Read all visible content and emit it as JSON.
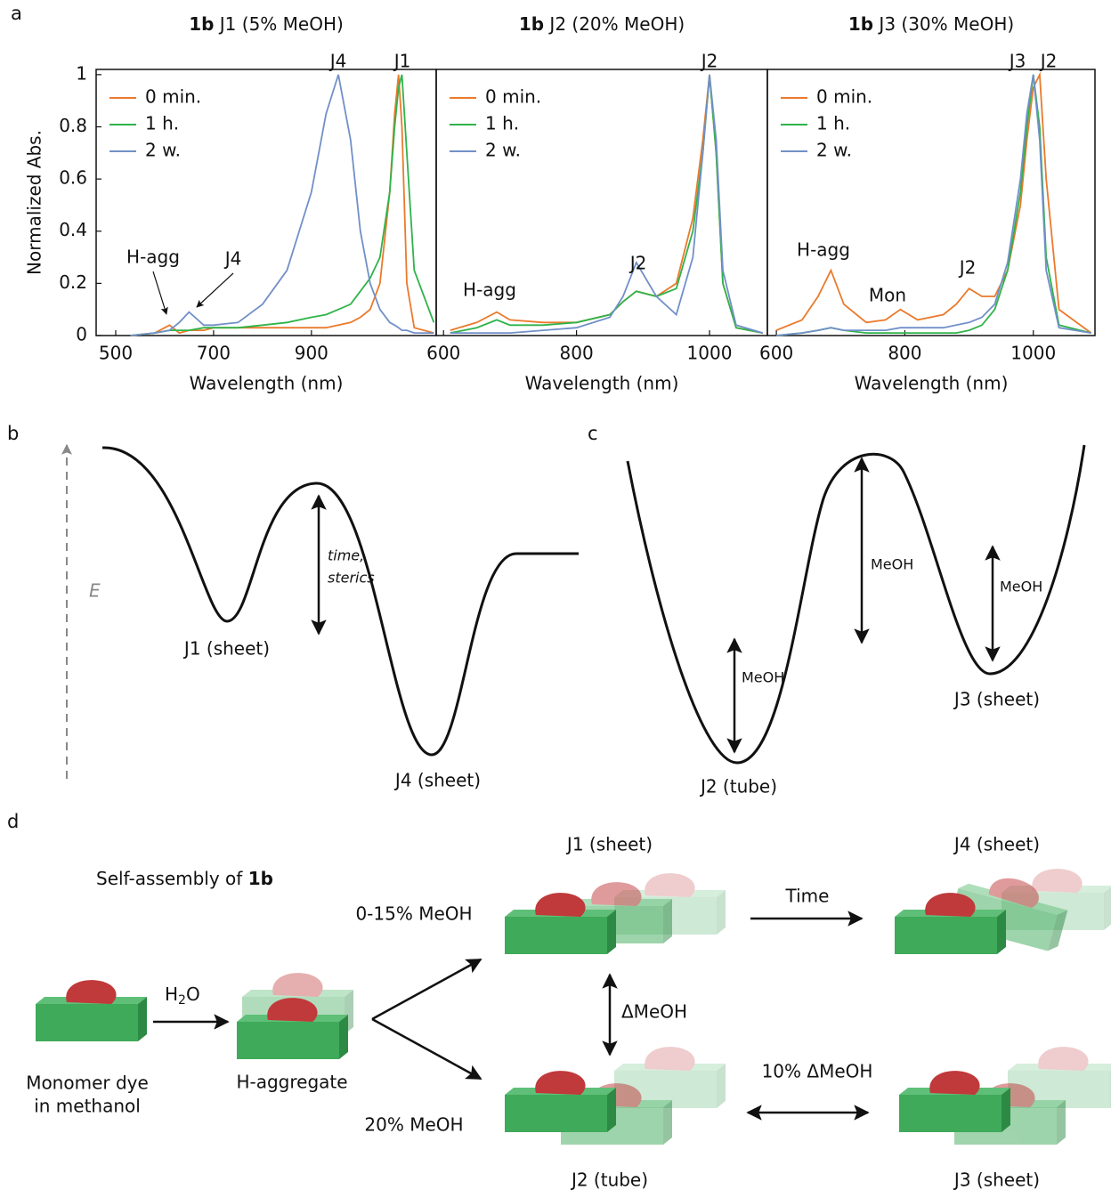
{
  "panel_labels": [
    "a",
    "b",
    "c",
    "d"
  ],
  "chart_data": [
    {
      "type": "line",
      "title_bold": "1b",
      "title": "J1 (5% MeOH)",
      "x_label": "Wavelength (nm)",
      "y_label": "Normalized Abs.",
      "xlim": [
        460,
        1155
      ],
      "xticks": [
        500,
        700,
        900
      ],
      "ylim": [
        0,
        1.02
      ],
      "yticks": [
        0,
        0.2,
        0.4,
        0.6,
        0.8,
        1
      ],
      "annotations": [
        "J4",
        "J1",
        "H-agg",
        "J4"
      ],
      "x": [
        530,
        580,
        610,
        630,
        650,
        680,
        700,
        750,
        800,
        850,
        900,
        930,
        955,
        980,
        1000,
        1020,
        1040,
        1060,
        1070,
        1078,
        1085,
        1095,
        1110,
        1150
      ],
      "series": [
        {
          "name": "0 min.",
          "color": "#ea7a2c",
          "values": [
            0,
            0.01,
            0.04,
            0.01,
            0.02,
            0.02,
            0.03,
            0.03,
            0.03,
            0.03,
            0.03,
            0.03,
            0.04,
            0.05,
            0.07,
            0.1,
            0.2,
            0.55,
            0.85,
            1.0,
            0.8,
            0.2,
            0.03,
            0.01
          ]
        },
        {
          "name": "1 h.",
          "color": "#2fb34a",
          "values": [
            0,
            0.01,
            0.02,
            0.02,
            0.02,
            0.03,
            0.03,
            0.03,
            0.04,
            0.05,
            0.07,
            0.08,
            0.1,
            0.12,
            0.17,
            0.22,
            0.3,
            0.55,
            0.8,
            0.95,
            1.0,
            0.7,
            0.25,
            0.05
          ]
        },
        {
          "name": "2 w.",
          "color": "#7190c8",
          "values": [
            0,
            0.01,
            0.02,
            0.05,
            0.09,
            0.04,
            0.04,
            0.05,
            0.12,
            0.25,
            0.55,
            0.85,
            1.0,
            0.75,
            0.4,
            0.2,
            0.1,
            0.05,
            0.04,
            0.03,
            0.02,
            0.02,
            0.01,
            0.01
          ]
        }
      ]
    },
    {
      "type": "line",
      "title_bold": "1b",
      "title": "J2 (20% MeOH)",
      "x_label": "Wavelength (nm)",
      "xlim": [
        589,
        1087
      ],
      "xticks": [
        600,
        800,
        1000
      ],
      "ylim": [
        0,
        1.02
      ],
      "annotations": [
        "J2",
        "J2",
        "H-agg"
      ],
      "x": [
        610,
        650,
        680,
        700,
        750,
        800,
        850,
        870,
        890,
        920,
        950,
        975,
        990,
        1000,
        1010,
        1020,
        1040,
        1080
      ],
      "series": [
        {
          "name": "0 min.",
          "color": "#ea7a2c",
          "values": [
            0.02,
            0.05,
            0.09,
            0.06,
            0.05,
            0.05,
            0.08,
            0.13,
            0.17,
            0.15,
            0.2,
            0.45,
            0.75,
            1.0,
            0.7,
            0.2,
            0.03,
            0.01
          ]
        },
        {
          "name": "1 h.",
          "color": "#2fb34a",
          "values": [
            0.01,
            0.03,
            0.06,
            0.04,
            0.04,
            0.05,
            0.08,
            0.13,
            0.17,
            0.15,
            0.18,
            0.4,
            0.7,
            1.0,
            0.7,
            0.2,
            0.03,
            0.01
          ]
        },
        {
          "name": "2 w.",
          "color": "#7190c8",
          "values": [
            0.01,
            0.01,
            0.01,
            0.01,
            0.02,
            0.03,
            0.07,
            0.15,
            0.28,
            0.15,
            0.08,
            0.3,
            0.7,
            1.0,
            0.75,
            0.25,
            0.04,
            0.01
          ]
        }
      ]
    },
    {
      "type": "line",
      "title_bold": "1b",
      "title": "J3 (30% MeOH)",
      "x_label": "Wavelength (nm)",
      "xlim": [
        586,
        1096
      ],
      "xticks": [
        600,
        800,
        1000
      ],
      "ylim": [
        0,
        1.02
      ],
      "annotations": [
        "J3",
        "J2",
        "H-agg",
        "Mon",
        "J2"
      ],
      "x": [
        600,
        640,
        665,
        685,
        705,
        740,
        770,
        793,
        820,
        860,
        880,
        900,
        920,
        940,
        960,
        980,
        990,
        1000,
        1010,
        1020,
        1040,
        1090
      ],
      "series": [
        {
          "name": "0 min.",
          "color": "#ea7a2c",
          "values": [
            0.02,
            0.06,
            0.15,
            0.25,
            0.12,
            0.05,
            0.06,
            0.1,
            0.06,
            0.08,
            0.12,
            0.18,
            0.15,
            0.15,
            0.25,
            0.5,
            0.75,
            0.95,
            1.0,
            0.6,
            0.1,
            0.01
          ]
        },
        {
          "name": "1 h.",
          "color": "#2fb34a",
          "values": [
            0,
            0.01,
            0.02,
            0.03,
            0.02,
            0.01,
            0.01,
            0.01,
            0.01,
            0.01,
            0.01,
            0.02,
            0.04,
            0.1,
            0.25,
            0.55,
            0.8,
            1.0,
            0.8,
            0.3,
            0.04,
            0.01
          ]
        },
        {
          "name": "2 w.",
          "color": "#7190c8",
          "values": [
            0,
            0.01,
            0.02,
            0.03,
            0.02,
            0.02,
            0.02,
            0.03,
            0.03,
            0.03,
            0.04,
            0.05,
            0.07,
            0.12,
            0.28,
            0.6,
            0.85,
            1.0,
            0.75,
            0.25,
            0.03,
            0.01
          ]
        }
      ]
    }
  ],
  "panel_b": {
    "axis_label": "E",
    "barrier_label": [
      "time,",
      "sterics"
    ],
    "wells": [
      "J1 (sheet)",
      "J4 (sheet)"
    ]
  },
  "panel_c": {
    "barrier_labels": [
      "MeOH",
      "MeOH",
      "MeOH"
    ],
    "wells": [
      "J2 (tube)",
      "J3 (sheet)"
    ]
  },
  "panel_d": {
    "title": "Self-assembly of",
    "title_bold": "1b",
    "monomer": [
      "Monomer dye",
      "in methanol"
    ],
    "water": [
      "H",
      "2",
      "O"
    ],
    "h_aggregate": "H-aggregate",
    "conditions": [
      "0-15% MeOH",
      "20% MeOH"
    ],
    "states": [
      "J1 (sheet)",
      "J4 (sheet)",
      "J2 (tube)",
      "J3 (sheet)"
    ],
    "transitions": [
      "Time",
      "ΔMeOH",
      "10% ΔMeOH"
    ]
  }
}
